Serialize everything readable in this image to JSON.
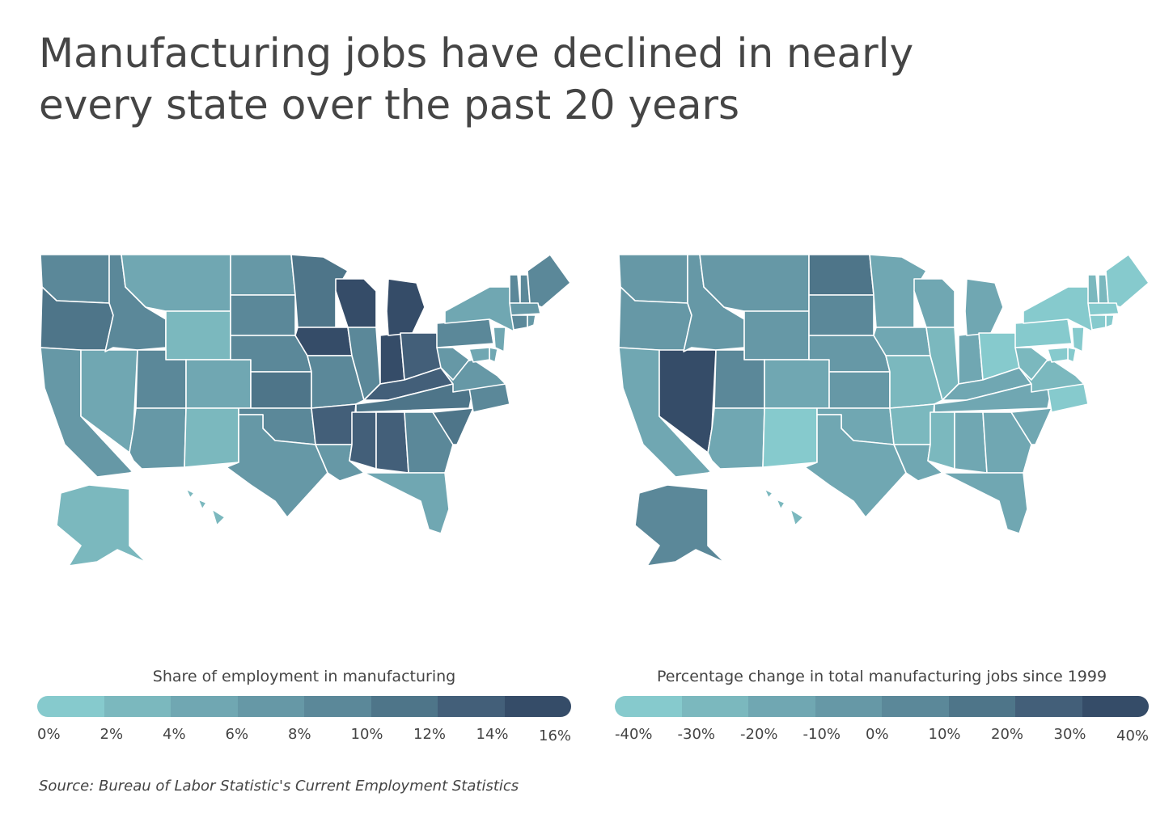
{
  "title_line1": "Manufacturing jobs have declined in nearly",
  "title_line2": "every state over the past 20 years",
  "source": "Source: Bureau of Labor Statistic's Current Employment Statistics",
  "palette": [
    "#86cacd",
    "#7bb8be",
    "#70a7b2",
    "#6698a6",
    "#5b8899",
    "#4e7589",
    "#435f79",
    "#354c68"
  ],
  "legend_left": {
    "title": "Share of employment in manufacturing",
    "ticks": [
      "0%",
      "2%",
      "4%",
      "6%",
      "8%",
      "10%",
      "12%",
      "14%",
      "16%"
    ]
  },
  "legend_right": {
    "title": "Percentage change in total manufacturing jobs since 1999",
    "ticks": [
      "-40%",
      "-30%",
      "-20%",
      "-10%",
      "0%",
      "10%",
      "20%",
      "30%",
      "40%"
    ]
  },
  "map_left_classes": {
    "WA": 4,
    "OR": 5,
    "CA": 3,
    "NV": 2,
    "ID": 4,
    "MT": 2,
    "WY": 1,
    "UT": 4,
    "CO": 2,
    "AZ": 3,
    "NM": 1,
    "ND": 3,
    "SD": 4,
    "NE": 4,
    "KS": 5,
    "OK": 4,
    "TX": 3,
    "MN": 5,
    "IA": 7,
    "MO": 4,
    "AR": 6,
    "LA": 3,
    "WI": 7,
    "IL": 4,
    "IN": 7,
    "MI": 7,
    "OH": 6,
    "KY": 6,
    "TN": 5,
    "MS": 6,
    "AL": 6,
    "GA": 4,
    "FL": 2,
    "SC": 5,
    "NC": 4,
    "VA": 3,
    "WV": 3,
    "PA": 4,
    "NY": 2,
    "VT": 4,
    "NH": 4,
    "ME": 4,
    "MA": 3,
    "CT": 4,
    "NJ": 2,
    "DE": 2,
    "MD": 2,
    "RI": 3,
    "AK": 1,
    "HI": 1
  },
  "map_right_classes": {
    "WA": 3,
    "OR": 3,
    "CA": 2,
    "NV": 7,
    "ID": 3,
    "MT": 3,
    "WY": 3,
    "UT": 4,
    "CO": 2,
    "AZ": 2,
    "NM": 0,
    "ND": 5,
    "SD": 4,
    "NE": 3,
    "KS": 3,
    "OK": 2,
    "TX": 2,
    "MN": 2,
    "IA": 2,
    "MO": 1,
    "AR": 1,
    "LA": 2,
    "WI": 2,
    "IL": 1,
    "IN": 2,
    "MI": 2,
    "OH": 0,
    "KY": 2,
    "TN": 2,
    "MS": 1,
    "AL": 2,
    "GA": 2,
    "FL": 2,
    "SC": 2,
    "NC": 0,
    "VA": 1,
    "WV": 1,
    "PA": 0,
    "NY": 0,
    "VT": 1,
    "NH": 1,
    "ME": 0,
    "MA": 0,
    "CT": 0,
    "NJ": 0,
    "DE": 0,
    "MD": 0,
    "RI": 0,
    "AK": 4,
    "HI": 1
  }
}
